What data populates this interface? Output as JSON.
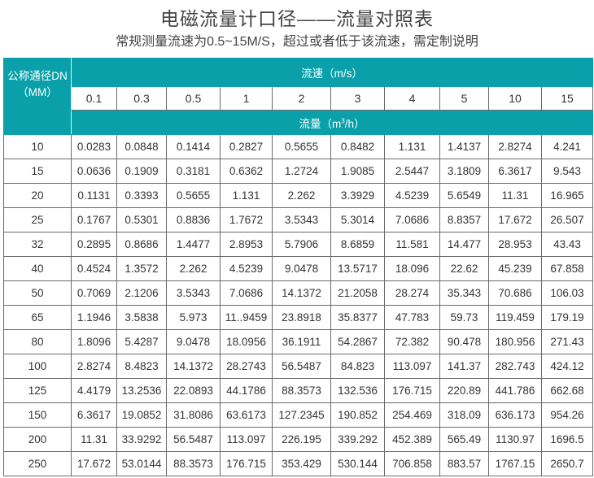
{
  "title": "电磁流量计口径——流量对照表",
  "subtitle": "常规测量流速为0.5~15M/S，超过或者低于该流速，需定制说明",
  "table": {
    "corner_label_line1": "公称通径DN",
    "corner_label_line2": "（MM）",
    "velocity_header": "流速（m/s）",
    "flow_header_prefix": "流量（m",
    "flow_header_sup": "3",
    "flow_header_suffix": "/h）",
    "velocities": [
      "0.1",
      "0.3",
      "0.5",
      "1",
      "2",
      "3",
      "4",
      "5",
      "10",
      "15"
    ],
    "rows": [
      {
        "dn": "10",
        "values": [
          "0.0283",
          "0.0848",
          "0.1414",
          "0.2827",
          "0.5655",
          "0.8482",
          "1.131",
          "1.4137",
          "2.8274",
          "4.241"
        ]
      },
      {
        "dn": "15",
        "values": [
          "0.0636",
          "0.1909",
          "0.3181",
          "0.6362",
          "1.2724",
          "1.9085",
          "2.5447",
          "3.1809",
          "6.3617",
          "9.543"
        ]
      },
      {
        "dn": "20",
        "values": [
          "0.1131",
          "0.3393",
          "0.5655",
          "1.131",
          "2.262",
          "3.3929",
          "4.5239",
          "5.6549",
          "11.31",
          "16.965"
        ]
      },
      {
        "dn": "25",
        "values": [
          "0.1767",
          "0.5301",
          "0.8836",
          "1.7672",
          "3.5343",
          "5.3014",
          "7.0686",
          "8.8357",
          "17.672",
          "26.507"
        ]
      },
      {
        "dn": "32",
        "values": [
          "0.2895",
          "0.8686",
          "1.4477",
          "2.8953",
          "5.7906",
          "8.6859",
          "11.581",
          "14.477",
          "28.953",
          "43.43"
        ]
      },
      {
        "dn": "40",
        "values": [
          "0.4524",
          "1.3572",
          "2.262",
          "4.5239",
          "9.0478",
          "13.5717",
          "18.096",
          "22.62",
          "45.239",
          "67.858"
        ]
      },
      {
        "dn": "50",
        "values": [
          "0.7069",
          "2.1206",
          "3.5343",
          "7.0686",
          "14.1372",
          "21.2058",
          "28.274",
          "35.343",
          "70.686",
          "106.03"
        ]
      },
      {
        "dn": "65",
        "values": [
          "1.1946",
          "3.5838",
          "5.973",
          "11..9459",
          "23.8918",
          "35.8377",
          "47.783",
          "59.73",
          "119.459",
          "179.19"
        ]
      },
      {
        "dn": "80",
        "values": [
          "1.8096",
          "5.4287",
          "9.0478",
          "18.0956",
          "36.1911",
          "54.2867",
          "72.382",
          "90.478",
          "180.956",
          "271.43"
        ]
      },
      {
        "dn": "100",
        "values": [
          "2.8274",
          "8.4823",
          "14.1372",
          "28.2743",
          "56.5487",
          "84.823",
          "113.097",
          "141.37",
          "282.743",
          "424.12"
        ]
      },
      {
        "dn": "125",
        "values": [
          "4.4179",
          "13.2536",
          "22.0893",
          "44.1786",
          "88.3573",
          "132.536",
          "176.715",
          "220.89",
          "441.786",
          "662.68"
        ]
      },
      {
        "dn": "150",
        "values": [
          "6.3617",
          "19.0852",
          "31.8086",
          "63.6173",
          "127.2345",
          "190.852",
          "254.469",
          "318.09",
          "636.173",
          "954.26"
        ]
      },
      {
        "dn": "200",
        "values": [
          "11.31",
          "33.9292",
          "56.5487",
          "113.097",
          "226.195",
          "339.292",
          "452.389",
          "565.49",
          "1130.97",
          "1696.5"
        ]
      },
      {
        "dn": "250",
        "values": [
          "17.672",
          "53.0144",
          "88.3573",
          "176.715",
          "353.429",
          "530.144",
          "706.858",
          "883.57",
          "1767.15",
          "2650.7"
        ]
      }
    ]
  },
  "colors": {
    "header_teal": "#0aa0aa",
    "text": "#333333"
  }
}
